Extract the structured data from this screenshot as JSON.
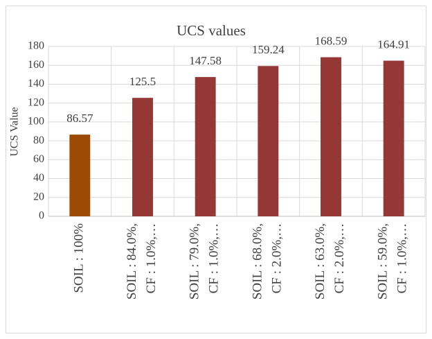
{
  "chart_data": {
    "type": "bar",
    "title": "UCS values",
    "y_label": "UCS Value",
    "categories": [
      "SOIL : 100%",
      "SOIL : 84.0%, CF : 1.0%,…",
      "SOIL : 79.0%, CF : 1.0%,…",
      "SOIL : 68.0%, CF : 2.0%,…",
      "SOIL : 63.0%, CF : 2.0%,…",
      "SOIL : 59.0%, CF : 1.0%,…"
    ],
    "values": [
      86.57,
      125.5,
      147.58,
      159.24,
      168.59,
      164.91
    ],
    "colors": [
      "#9c4a06",
      "#953735",
      "#953735",
      "#953735",
      "#953735",
      "#953735"
    ],
    "ylim": [
      0,
      180
    ],
    "yticks": [
      0,
      20,
      40,
      60,
      80,
      100,
      120,
      140,
      160,
      180
    ],
    "grid": true
  }
}
